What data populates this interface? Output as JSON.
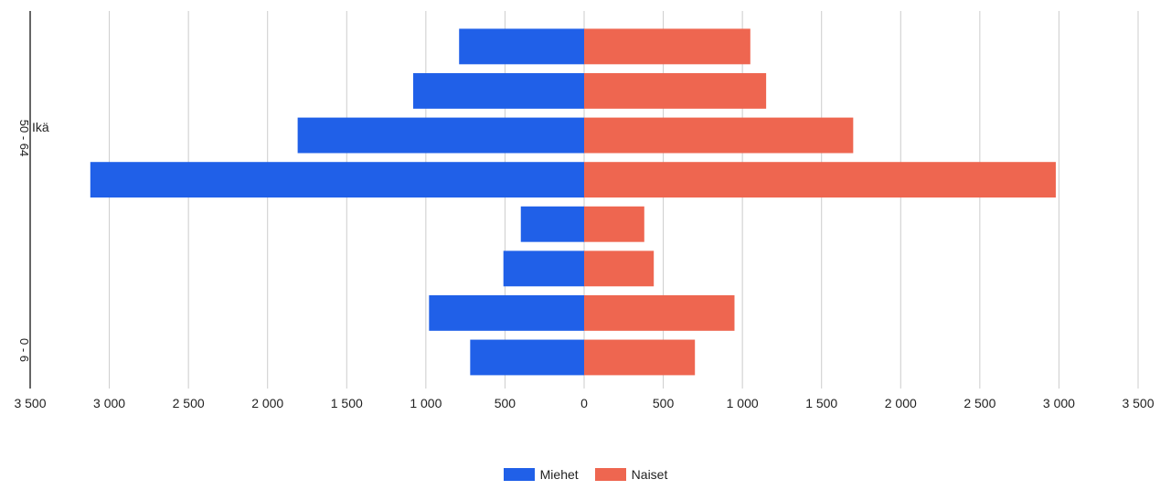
{
  "chart_data": {
    "type": "bar",
    "orientation": "horizontal",
    "title": "",
    "ylabel": "Ikä",
    "xlabel": "",
    "xlim": [
      -3500,
      3500
    ],
    "x_ticks": [
      "3 500",
      "3 000",
      "2 500",
      "2 000",
      "1 500",
      "1 000",
      "500",
      "0",
      "500",
      "1 000",
      "1 500",
      "2 000",
      "2 500",
      "3 000",
      "3 500"
    ],
    "y_tick_labels": [
      "50 - 64",
      "0 - 6"
    ],
    "series": [
      {
        "name": "Miehet",
        "color": "#2060e8",
        "side": "left",
        "values": [
          790,
          1080,
          1810,
          3120,
          400,
          510,
          980,
          720
        ]
      },
      {
        "name": "Naiset",
        "color": "#ee6650",
        "side": "right",
        "values": [
          1050,
          1150,
          1700,
          2980,
          380,
          440,
          950,
          700
        ]
      }
    ],
    "legend_position": "bottom",
    "grid": true
  }
}
